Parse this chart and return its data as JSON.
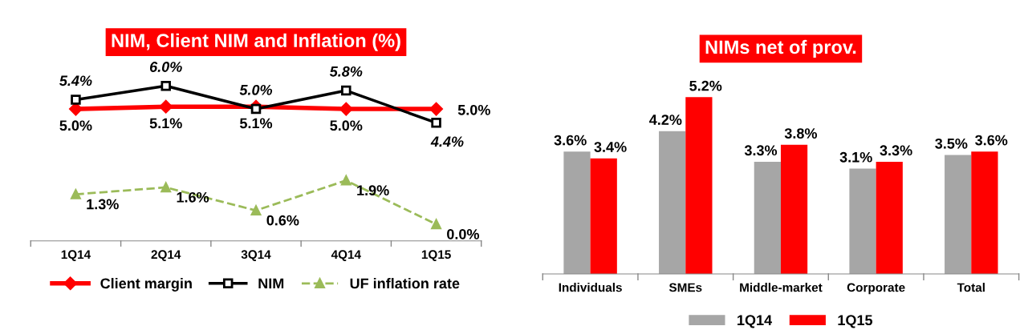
{
  "chart_data": [
    {
      "type": "line",
      "title": "NIM, Client NIM and Inflation (%)",
      "categories": [
        "1Q14",
        "2Q14",
        "3Q14",
        "4Q14",
        "1Q15"
      ],
      "tick_labels": "x",
      "legend": "bottom",
      "series": [
        {
          "name": "Client margin",
          "color": "#ff0000",
          "marker": "diamond",
          "line_style": "solid",
          "values": [
            5.0,
            5.1,
            5.1,
            5.0,
            5.0
          ],
          "value_labels": [
            "5.0%",
            "5.1%",
            "5.1%",
            "5.0%",
            "5.0%"
          ]
        },
        {
          "name": "NIM",
          "color": "#000000",
          "marker": "square",
          "line_style": "solid",
          "values": [
            5.4,
            6.0,
            5.0,
            5.8,
            4.4
          ],
          "value_labels": [
            "5.4%",
            "6.0%",
            "5.0%",
            "5.8%",
            "4.4%"
          ]
        },
        {
          "name": "UF inflation rate",
          "color": "#9bbb59",
          "marker": "triangle",
          "line_style": "dashed",
          "values": [
            1.3,
            1.6,
            0.6,
            1.9,
            0.0
          ],
          "value_labels": [
            "1.3%",
            "1.6%",
            "0.6%",
            "1.9%",
            "0.0%"
          ]
        }
      ]
    },
    {
      "type": "bar",
      "title": "NIMs net of prov.",
      "categories": [
        "Individuals",
        "SMEs",
        "Middle-market",
        "Corporate",
        "Total"
      ],
      "tick_labels": "x",
      "legend": "bottom",
      "series": [
        {
          "name": "1Q14",
          "color": "#a6a6a6",
          "values": [
            3.6,
            4.2,
            3.3,
            3.1,
            3.5
          ],
          "value_labels": [
            "3.6%",
            "4.2%",
            "3.3%",
            "3.1%",
            "3.5%"
          ]
        },
        {
          "name": "1Q15",
          "color": "#ff0000",
          "values": [
            3.4,
            5.2,
            3.8,
            3.3,
            3.6
          ],
          "value_labels": [
            "3.4%",
            "5.2%",
            "3.8%",
            "3.3%",
            "3.6%"
          ]
        }
      ]
    }
  ]
}
